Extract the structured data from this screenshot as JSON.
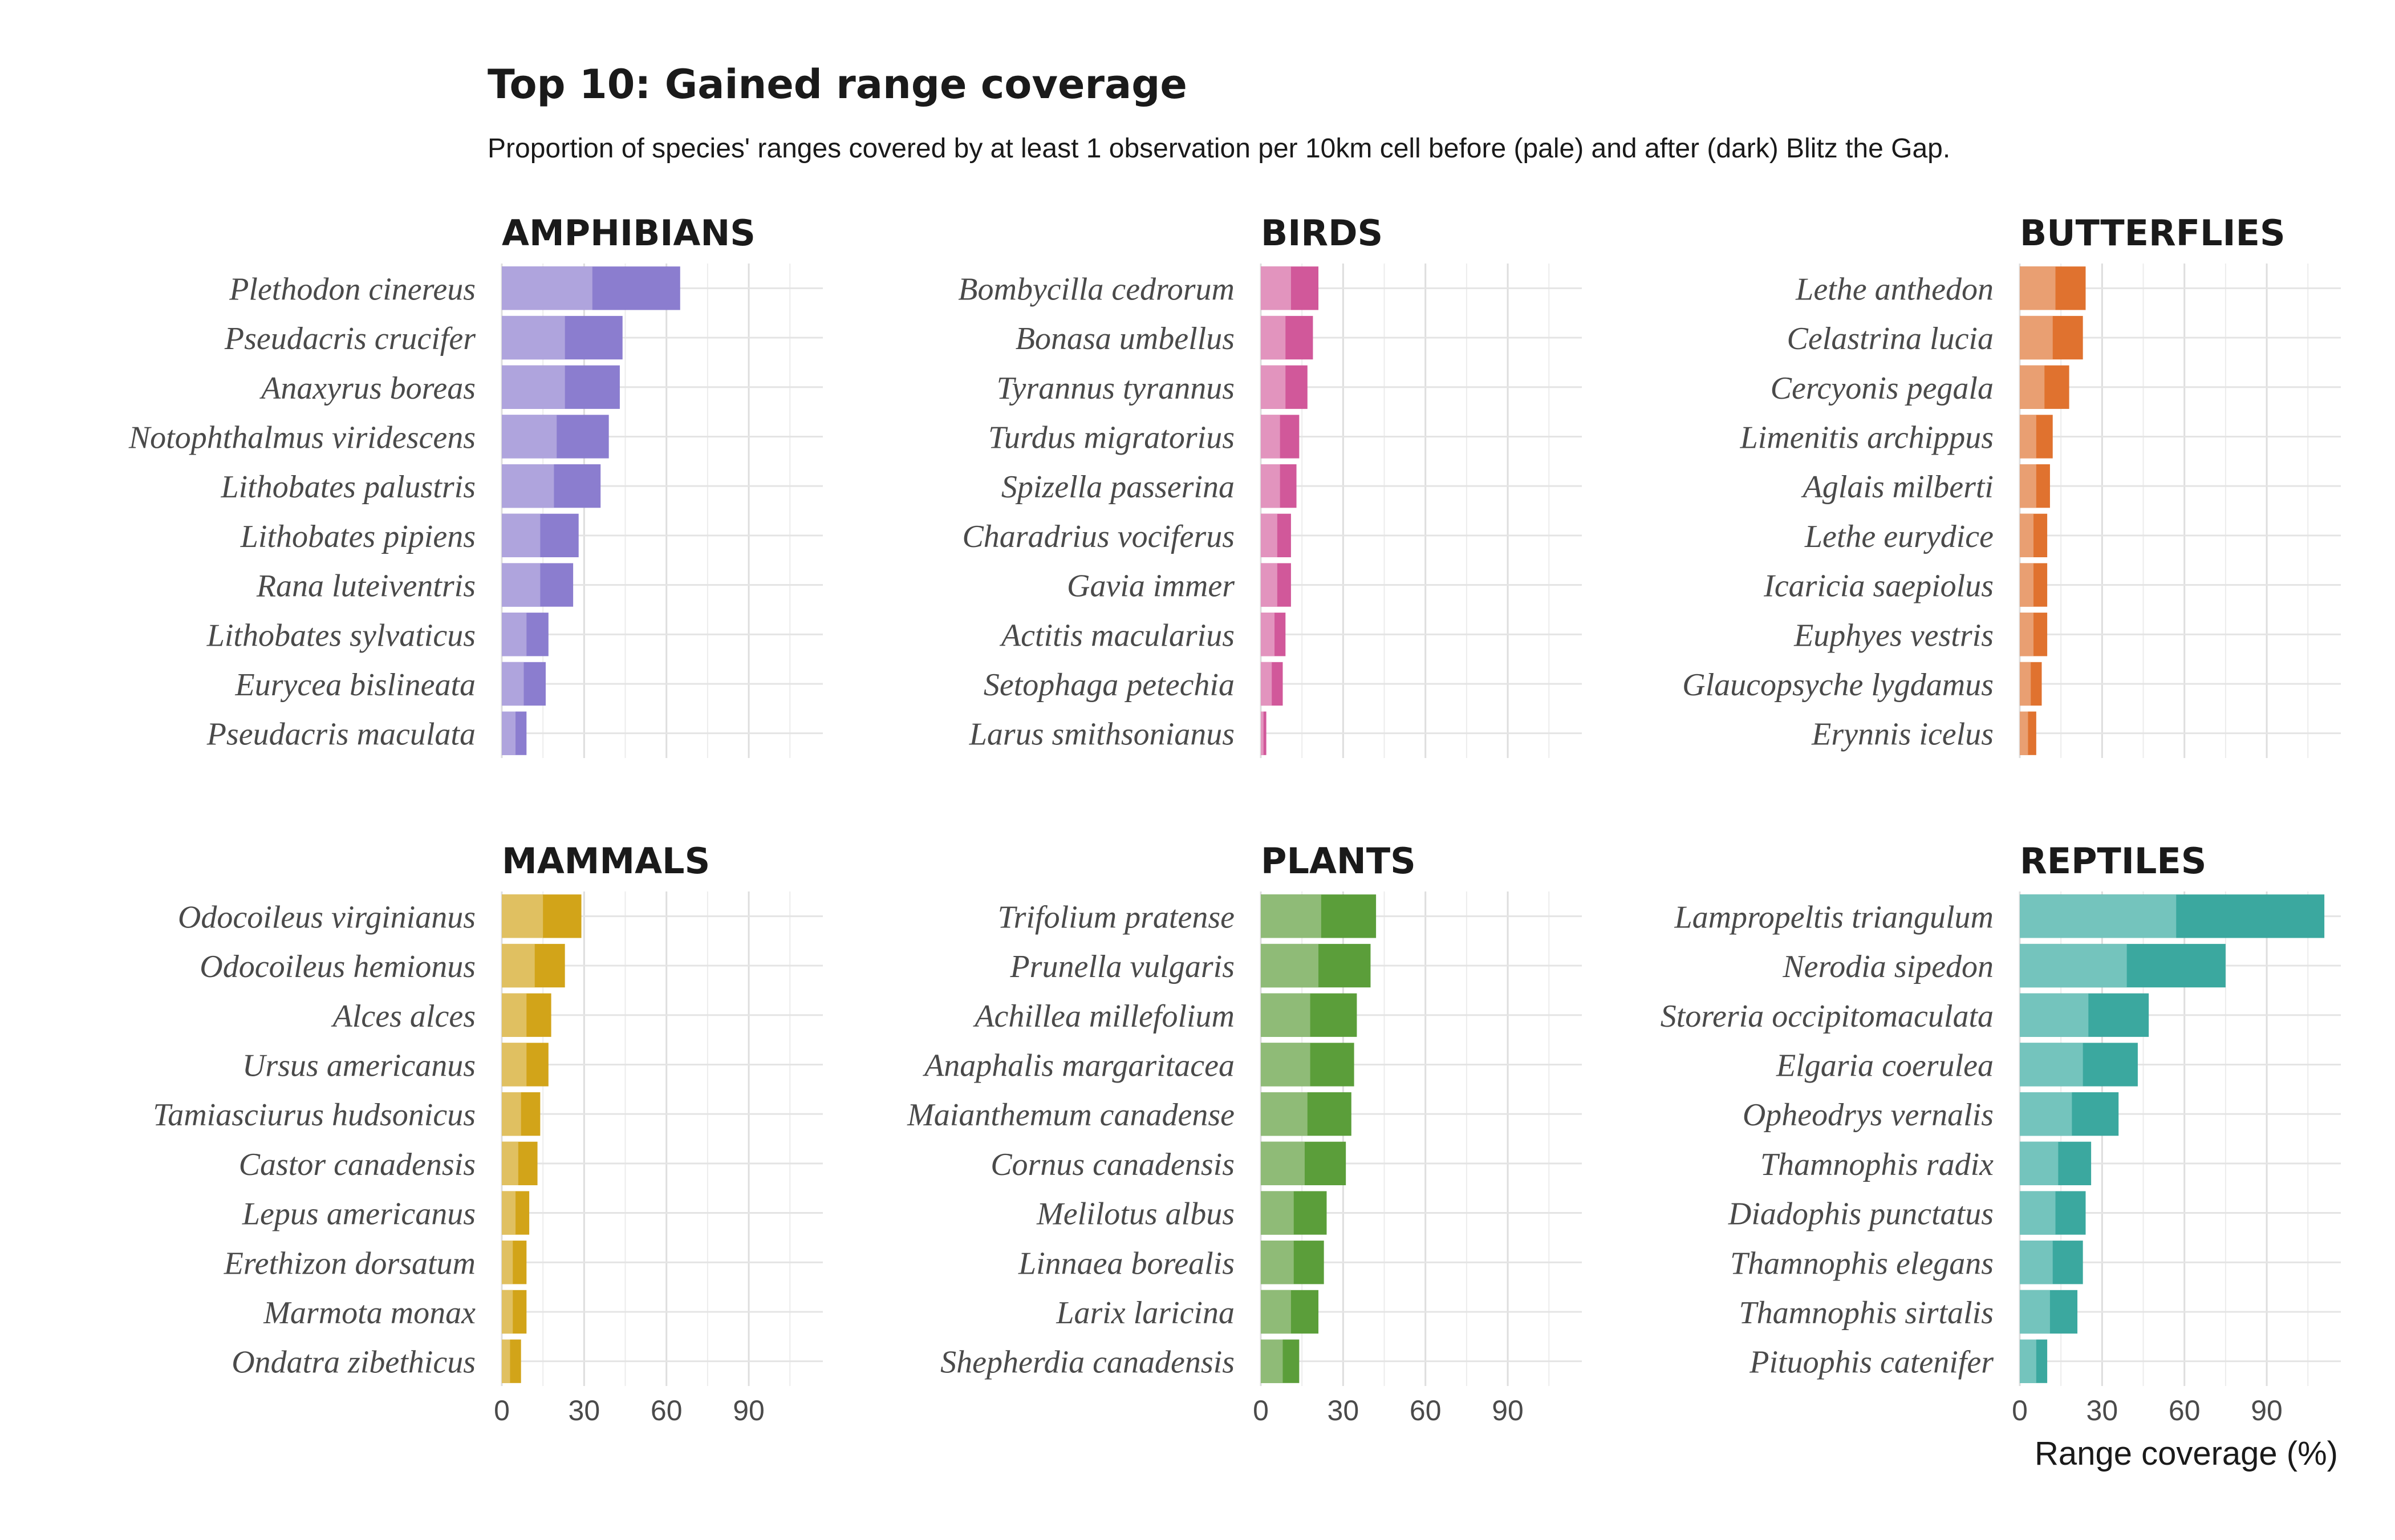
{
  "chart_data": {
    "type": "bar",
    "orientation": "horizontal",
    "title": "Top 10: Gained range coverage",
    "subtitle": "Proportion of species' ranges covered by at least 1 observation per 10km cell before (pale) and after (dark) Blitz the Gap.",
    "xlabel": "Range coverage (%)",
    "xlim": [
      0,
      117
    ],
    "xticks": [
      0,
      30,
      60,
      90
    ],
    "grid": true,
    "legend": "none",
    "series_keys": [
      "before",
      "after"
    ],
    "facets": [
      {
        "name": "AMPHIBIANS",
        "color_after": "#8b7dcf",
        "color_before": "#afa4dd",
        "categories": [
          "Plethodon cinereus",
          "Pseudacris crucifer",
          "Anaxyrus boreas",
          "Notophthalmus viridescens",
          "Lithobates palustris",
          "Lithobates pipiens",
          "Rana luteiventris",
          "Lithobates sylvaticus",
          "Eurycea bislineata",
          "Pseudacris maculata"
        ],
        "before": [
          33,
          23,
          23,
          20,
          19,
          14,
          14,
          9,
          8,
          5
        ],
        "after": [
          65,
          44,
          43,
          39,
          36,
          28,
          26,
          17,
          16,
          9
        ]
      },
      {
        "name": "BIRDS",
        "color_after": "#d1589a",
        "color_before": "#e294be",
        "categories": [
          "Bombycilla cedrorum",
          "Bonasa umbellus",
          "Tyrannus tyrannus",
          "Turdus migratorius",
          "Spizella passerina",
          "Charadrius vociferus",
          "Gavia immer",
          "Actitis macularius",
          "Setophaga petechia",
          "Larus smithsonianus"
        ],
        "before": [
          11,
          9,
          9,
          7,
          7,
          6,
          6,
          5,
          4,
          1
        ],
        "after": [
          21,
          19,
          17,
          14,
          13,
          11,
          11,
          9,
          8,
          2
        ]
      },
      {
        "name": "BUTTERFLIES",
        "color_after": "#e0722f",
        "color_before": "#e99f72",
        "categories": [
          "Lethe anthedon",
          "Celastrina lucia",
          "Cercyonis pegala",
          "Limenitis archippus",
          "Aglais milberti",
          "Lethe eurydice",
          "Icaricia saepiolus",
          "Euphyes vestris",
          "Glaucopsyche lygdamus",
          "Erynnis icelus"
        ],
        "before": [
          13,
          12,
          9,
          6,
          6,
          5,
          5,
          5,
          4,
          3
        ],
        "after": [
          24,
          23,
          18,
          12,
          11,
          10,
          10,
          10,
          8,
          6
        ]
      },
      {
        "name": "MAMMALS",
        "color_after": "#d2a419",
        "color_before": "#e0c061",
        "categories": [
          "Odocoileus virginianus",
          "Odocoileus hemionus",
          "Alces alces",
          "Ursus americanus",
          "Tamiasciurus hudsonicus",
          "Castor canadensis",
          "Lepus americanus",
          "Erethizon dorsatum",
          "Marmota monax",
          "Ondatra zibethicus"
        ],
        "before": [
          15,
          12,
          9,
          9,
          7,
          6,
          5,
          4,
          4,
          3
        ],
        "after": [
          29,
          23,
          18,
          17,
          14,
          13,
          10,
          9,
          9,
          7
        ]
      },
      {
        "name": "PLANTS",
        "color_after": "#5b9e3a",
        "color_before": "#8fbb77",
        "categories": [
          "Trifolium pratense",
          "Prunella vulgaris",
          "Achillea millefolium",
          "Anaphalis margaritacea",
          "Maianthemum canadense",
          "Cornus canadensis",
          "Melilotus albus",
          "Linnaea borealis",
          "Larix laricina",
          "Shepherdia canadensis"
        ],
        "before": [
          22,
          21,
          18,
          18,
          17,
          16,
          12,
          12,
          11,
          8
        ],
        "after": [
          42,
          40,
          35,
          34,
          33,
          31,
          24,
          23,
          21,
          14
        ]
      },
      {
        "name": "REPTILES",
        "color_after": "#3ba89f",
        "color_before": "#74c4bd",
        "categories": [
          "Lampropeltis triangulum",
          "Nerodia sipedon",
          "Storeria occipitomaculata",
          "Elgaria coerulea",
          "Opheodrys vernalis",
          "Thamnophis radix",
          "Diadophis punctatus",
          "Thamnophis elegans",
          "Thamnophis sirtalis",
          "Pituophis catenifer"
        ],
        "before": [
          57,
          39,
          25,
          23,
          19,
          14,
          13,
          12,
          11,
          6
        ],
        "after": [
          111,
          75,
          47,
          43,
          36,
          26,
          24,
          23,
          21,
          10
        ]
      }
    ]
  }
}
